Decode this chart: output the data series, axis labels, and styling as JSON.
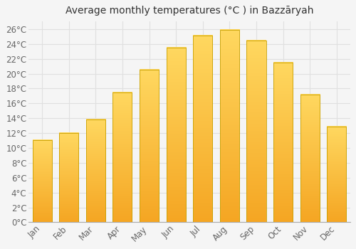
{
  "title": "Average monthly temperatures (°C ) in Bazzāryah",
  "months": [
    "Jan",
    "Feb",
    "Mar",
    "Apr",
    "May",
    "Jun",
    "Jul",
    "Aug",
    "Sep",
    "Oct",
    "Nov",
    "Dec"
  ],
  "values": [
    11.1,
    12.0,
    13.8,
    17.5,
    20.5,
    23.5,
    25.1,
    25.9,
    24.5,
    21.5,
    17.2,
    12.9
  ],
  "bar_color_bottom": "#F5A623",
  "bar_color_top": "#FFD060",
  "bar_edge_color": "#C8A000",
  "ylim": [
    0,
    27
  ],
  "ytick_step": 2,
  "background_color": "#f5f5f5",
  "plot_bg_color": "#f5f5f5",
  "grid_color": "#e0e0e0",
  "title_fontsize": 10,
  "tick_fontsize": 8.5,
  "tick_color": "#666666"
}
